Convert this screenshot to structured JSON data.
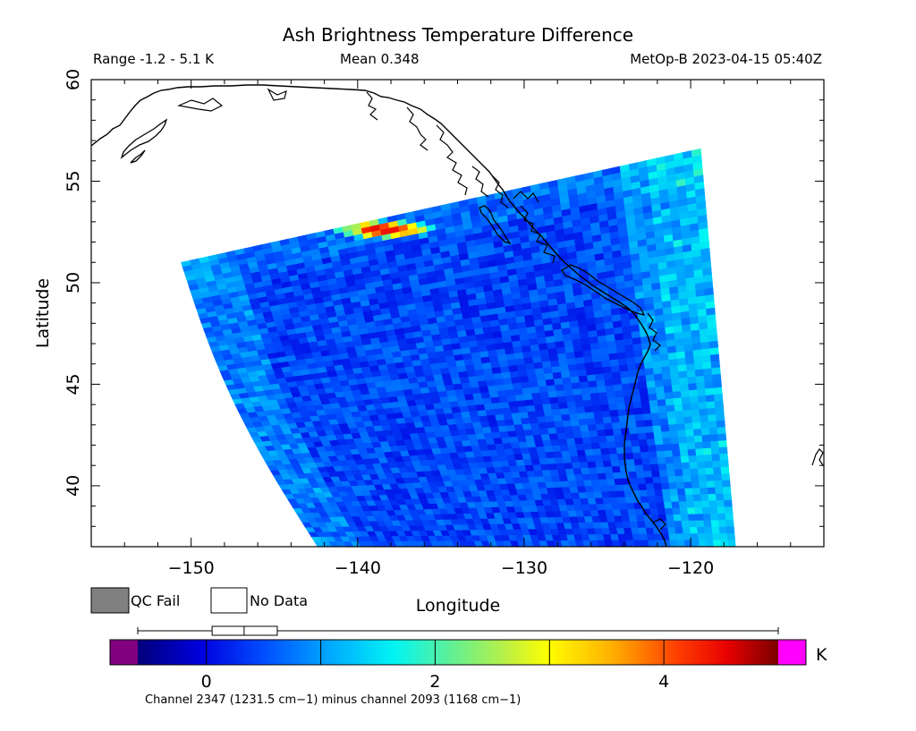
{
  "header": {
    "title": "Ash Brightness Temperature Difference",
    "range_label": "Range -1.2 - 5.1 K",
    "mean_label": "Mean 0.348",
    "satellite_time": "MetOp-B 2023-04-15 05:40Z"
  },
  "axes": {
    "xlabel": "Longitude",
    "ylabel": "Latitude",
    "x_range": [
      -156,
      -112
    ],
    "y_range": [
      37,
      60
    ],
    "x_ticks": [
      {
        "value": -150,
        "label": "−150"
      },
      {
        "value": -140,
        "label": "−140"
      },
      {
        "value": -130,
        "label": "−130"
      },
      {
        "value": -120,
        "label": "−120"
      }
    ],
    "y_ticks": [
      {
        "value": 40,
        "label": "40"
      },
      {
        "value": 45,
        "label": "45"
      },
      {
        "value": 50,
        "label": "50"
      },
      {
        "value": 55,
        "label": "55"
      },
      {
        "value": 60,
        "label": "60"
      }
    ]
  },
  "legend": {
    "qc_fail": "QC Fail",
    "no_data": "No Data",
    "qc_fail_color": "#808080",
    "no_data_color": "#ffffff"
  },
  "colorbar": {
    "unit": "K",
    "min": -0.6,
    "max": 5.0,
    "under_color": "#800080",
    "over_color": "#ff00ff",
    "ticks": [
      {
        "value": 0,
        "label": "0"
      },
      {
        "value": 2,
        "label": "2"
      },
      {
        "value": 4,
        "label": "4"
      }
    ],
    "caption": "Channel 2347 (1231.5 cm−1) minus channel 2093 (1168 cm−1)"
  },
  "boxplot": {
    "whisker_low": -0.6,
    "q1": 0.05,
    "median": 0.33,
    "q3": 0.62,
    "whisker_high": 5.0
  },
  "swath": {
    "corners_lonlat": {
      "top_left": [
        -150.6,
        51.0
      ],
      "top_right": [
        -119.4,
        56.6
      ],
      "bottom_right": [
        -117.3,
        37.0
      ],
      "bottom_left": [
        -142.4,
        37.0
      ]
    },
    "ash_plume": {
      "center": [
        -138.5,
        52.6
      ],
      "peak_value": 4.6
    }
  },
  "colors": {
    "coastline": "#000000",
    "frame": "#000000",
    "background": "#ffffff"
  }
}
